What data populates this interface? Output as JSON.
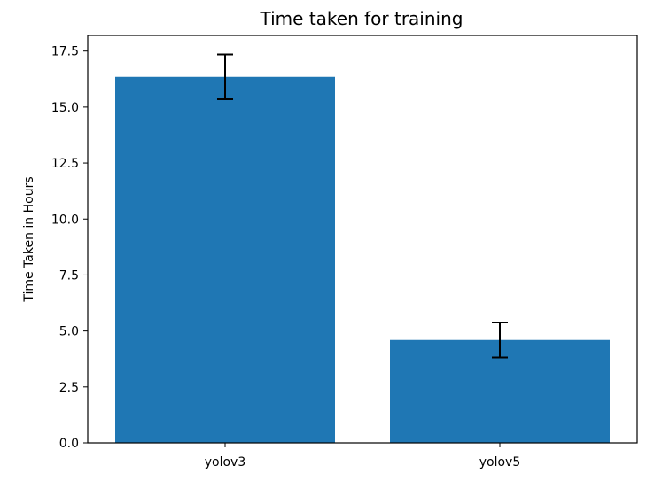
{
  "chart_data": {
    "type": "bar",
    "title": "Time taken for training",
    "xlabel": "",
    "ylabel": "Time Taken in Hours",
    "categories": [
      "yolov3",
      "yolov5"
    ],
    "values": [
      16.35,
      4.6
    ],
    "errors": [
      1.0,
      0.78
    ],
    "ylim": [
      0,
      18.2
    ],
    "yticks": [
      "0.0",
      "2.5",
      "5.0",
      "7.5",
      "10.0",
      "12.5",
      "15.0",
      "17.5"
    ],
    "bar_color": "#1f77b4",
    "error_bar_color": "#000000",
    "grid": false,
    "legend": "none"
  }
}
